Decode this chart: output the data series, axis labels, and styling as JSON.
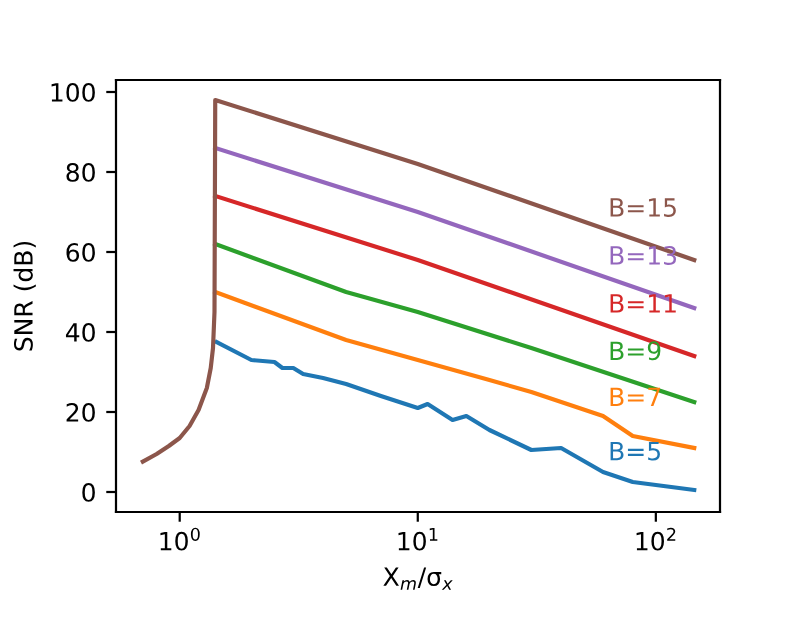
{
  "chart_data": {
    "type": "line",
    "xlabel": "X$_{m}$/σ$_{x}$",
    "ylabel": "SNR (dB)",
    "log": "x",
    "xlim": [
      0.54,
      186
    ],
    "xticks": [
      {
        "value": 1,
        "label": "10$^{0}$"
      },
      {
        "value": 10,
        "label": "10$^{1}$"
      },
      {
        "value": 100,
        "label": "10$^{2}$"
      }
    ],
    "ylim": [
      -5,
      103
    ],
    "yticks": [
      0,
      20,
      40,
      60,
      80,
      100
    ],
    "grid": false,
    "legend": false,
    "series": [
      {
        "name": "B=5",
        "color": "#1f77b4",
        "x": [
          1.43,
          2,
          2.5,
          2.7,
          3,
          3.3,
          4,
          5,
          7,
          10,
          11,
          14,
          16,
          20,
          30,
          40,
          60,
          80,
          145
        ],
        "values": [
          37.5,
          33,
          32.5,
          31,
          31,
          29.5,
          28.5,
          27,
          24,
          21,
          22,
          18,
          19,
          15.5,
          10.5,
          11,
          5,
          2.5,
          0.5
        ]
      },
      {
        "name": "B=7",
        "color": "#ff7f0e",
        "x": [
          1.41,
          5,
          10,
          20,
          30,
          60,
          80,
          145
        ],
        "values": [
          50,
          38,
          33,
          28,
          25,
          19,
          14,
          11
        ]
      },
      {
        "name": "B=9",
        "color": "#2ca02c",
        "x": [
          1.41,
          5,
          10,
          30,
          145
        ],
        "values": [
          62,
          50,
          45,
          36,
          22.5
        ]
      },
      {
        "name": "B=11",
        "color": "#d62728",
        "x": [
          1.41,
          10,
          145
        ],
        "values": [
          74,
          58,
          34
        ]
      },
      {
        "name": "B=13",
        "color": "#9467bd",
        "x": [
          1.41,
          10,
          145
        ],
        "values": [
          86,
          70,
          46
        ]
      },
      {
        "name": "B=15",
        "color": "#8c564b",
        "x": [
          0.7,
          0.8,
          0.9,
          1.0,
          1.1,
          1.2,
          1.3,
          1.35,
          1.38,
          1.4,
          1.41,
          10,
          145
        ],
        "values": [
          7.6,
          9.5,
          11.5,
          13.5,
          16.5,
          20.5,
          26,
          31,
          36,
          45,
          98,
          82,
          58
        ]
      }
    ]
  }
}
